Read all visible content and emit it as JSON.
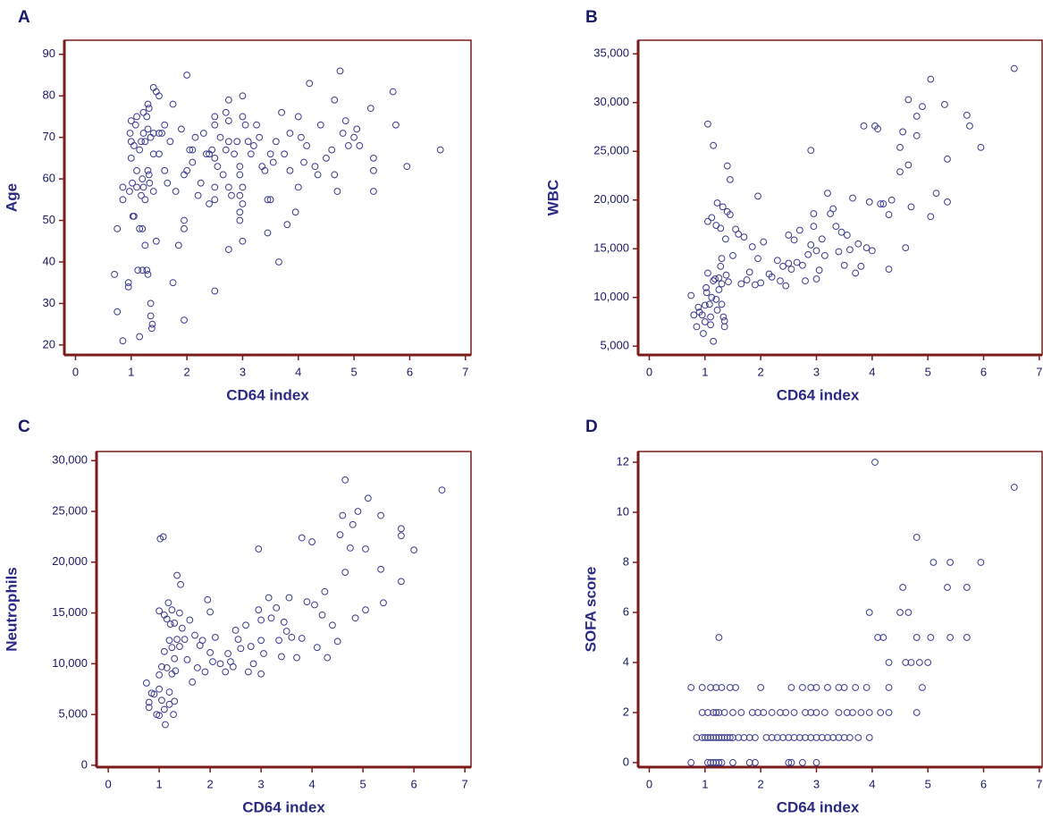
{
  "chart_data": [
    {
      "type": "scatter",
      "label": "A",
      "x_label": "CD64 index",
      "y_label": "Age",
      "color": "#3b3b8f",
      "xlim": [
        -0.2,
        7.1
      ],
      "ylim": [
        17.6,
        93.4
      ],
      "xticks": [
        0,
        1,
        2,
        3,
        4,
        5,
        6,
        7
      ],
      "yticks": [
        20,
        30,
        40,
        50,
        60,
        70,
        80,
        90
      ],
      "x": [
        0.7,
        0.75,
        0.75,
        0.85,
        0.85,
        0.85,
        0.95,
        0.95,
        0.97,
        0.98,
        1.0,
        1.0,
        1.0,
        1.02,
        1.03,
        1.05,
        1.05,
        1.08,
        1.1,
        1.1,
        1.1,
        1.12,
        1.15,
        1.15,
        1.15,
        1.18,
        1.18,
        1.2,
        1.2,
        1.2,
        1.22,
        1.22,
        1.22,
        1.25,
        1.25,
        1.25,
        1.28,
        1.28,
        1.3,
        1.3,
        1.3,
        1.3,
        1.32,
        1.32,
        1.33,
        1.35,
        1.35,
        1.35,
        1.37,
        1.38,
        1.4,
        1.4,
        1.4,
        1.4,
        1.45,
        1.45,
        1.5,
        1.5,
        1.5,
        1.55,
        1.6,
        1.6,
        1.65,
        1.7,
        1.75,
        1.75,
        1.8,
        1.85,
        1.9,
        1.95,
        1.95,
        1.95,
        1.95,
        2.0,
        2.0,
        2.05,
        2.1,
        2.1,
        2.15,
        2.2,
        2.25,
        2.3,
        2.35,
        2.4,
        2.4,
        2.45,
        2.5,
        2.5,
        2.5,
        2.5,
        2.5,
        2.5,
        2.55,
        2.6,
        2.65,
        2.7,
        2.7,
        2.75,
        2.75,
        2.75,
        2.75,
        2.75,
        2.8,
        2.85,
        2.9,
        2.95,
        2.95,
        2.95,
        2.95,
        2.95,
        3.0,
        3.0,
        3.0,
        3.0,
        3.0,
        3.05,
        3.1,
        3.15,
        3.2,
        3.25,
        3.3,
        3.35,
        3.4,
        3.45,
        3.45,
        3.5,
        3.5,
        3.55,
        3.6,
        3.65,
        3.7,
        3.75,
        3.8,
        3.85,
        3.85,
        3.95,
        4.0,
        4.0,
        4.05,
        4.1,
        4.15,
        4.2,
        4.3,
        4.35,
        4.4,
        4.5,
        4.6,
        4.65,
        4.65,
        4.7,
        4.75,
        4.8,
        4.85,
        4.9,
        5.0,
        5.05,
        5.1,
        5.3,
        5.35,
        5.35,
        5.35,
        5.7,
        5.75,
        5.95,
        6.55
      ],
      "values": [
        37,
        28,
        48,
        21,
        58,
        55,
        34,
        35,
        57,
        71,
        74,
        69,
        65,
        59,
        51,
        51,
        68,
        73,
        75,
        62,
        58,
        38,
        22,
        48,
        67,
        69,
        56,
        48,
        60,
        38,
        76,
        71,
        58,
        44,
        55,
        69,
        75,
        38,
        78,
        72,
        62,
        37,
        77,
        61,
        59,
        70,
        30,
        27,
        24,
        25,
        82,
        66,
        57,
        71,
        81,
        45,
        80,
        71,
        66,
        71,
        73,
        62,
        59,
        69,
        35,
        78,
        57,
        44,
        72,
        26,
        50,
        48,
        61,
        85,
        62,
        67,
        64,
        67,
        70,
        56,
        59,
        71,
        66,
        66,
        54,
        67,
        75,
        73,
        65,
        58,
        55,
        33,
        63,
        70,
        61,
        76,
        67,
        79,
        74,
        69,
        58,
        43,
        56,
        66,
        69,
        63,
        61,
        56,
        52,
        50,
        80,
        75,
        58,
        54,
        45,
        73,
        69,
        66,
        68,
        73,
        70,
        63,
        62,
        55,
        47,
        66,
        55,
        64,
        69,
        40,
        76,
        66,
        49,
        71,
        62,
        52,
        58,
        75,
        70,
        64,
        68,
        83,
        63,
        61,
        73,
        65,
        67,
        79,
        61,
        57,
        86,
        71,
        74,
        68,
        70,
        72,
        68,
        77,
        65,
        62,
        57,
        81,
        73,
        63,
        67
      ]
    },
    {
      "type": "scatter",
      "label": "B",
      "x_label": "CD64 index",
      "y_label": "WBC",
      "color": "#3b3b8f",
      "xlim": [
        -0.2,
        7.05
      ],
      "ylim": [
        4100,
        36400
      ],
      "xticks": [
        0,
        1,
        2,
        3,
        4,
        5,
        6,
        7
      ],
      "yticks": [
        {
          "value": 5000,
          "label": "5,000"
        },
        {
          "value": 10000,
          "label": "10,000"
        },
        {
          "value": 15000,
          "label": "15,000"
        },
        {
          "value": 20000,
          "label": "20,000"
        },
        {
          "value": 25000,
          "label": "25,000"
        },
        {
          "value": 30000,
          "label": "30,000"
        },
        {
          "value": 35000,
          "label": "35,000"
        }
      ],
      "x": [
        0.75,
        0.8,
        0.85,
        0.88,
        0.9,
        0.95,
        0.97,
        1.0,
        1.0,
        1.02,
        1.03,
        1.05,
        1.05,
        1.05,
        1.08,
        1.1,
        1.1,
        1.12,
        1.12,
        1.15,
        1.15,
        1.15,
        1.18,
        1.2,
        1.2,
        1.22,
        1.22,
        1.25,
        1.25,
        1.28,
        1.28,
        1.3,
        1.3,
        1.3,
        1.32,
        1.33,
        1.35,
        1.35,
        1.37,
        1.38,
        1.4,
        1.4,
        1.42,
        1.45,
        1.45,
        1.5,
        1.55,
        1.6,
        1.65,
        1.7,
        1.75,
        1.8,
        1.85,
        1.9,
        1.95,
        1.95,
        2.0,
        2.05,
        2.15,
        2.2,
        2.3,
        2.35,
        2.4,
        2.45,
        2.5,
        2.5,
        2.55,
        2.6,
        2.65,
        2.7,
        2.75,
        2.8,
        2.85,
        2.9,
        2.9,
        2.95,
        2.95,
        3.0,
        3.0,
        3.05,
        3.1,
        3.15,
        3.2,
        3.25,
        3.3,
        3.35,
        3.4,
        3.45,
        3.5,
        3.55,
        3.6,
        3.65,
        3.7,
        3.75,
        3.8,
        3.85,
        3.9,
        3.95,
        4.0,
        4.05,
        4.1,
        4.15,
        4.2,
        4.3,
        4.3,
        4.35,
        4.5,
        4.5,
        4.55,
        4.6,
        4.65,
        4.65,
        4.7,
        4.8,
        4.8,
        4.9,
        5.05,
        5.05,
        5.15,
        5.3,
        5.35,
        5.35,
        5.7,
        5.75,
        5.95,
        6.55
      ],
      "values": [
        10200,
        8200,
        7000,
        9000,
        8500,
        8200,
        6300,
        7500,
        9200,
        11000,
        10500,
        12500,
        17800,
        27800,
        9300,
        8000,
        7200,
        10000,
        18200,
        25600,
        5500,
        11700,
        11900,
        17400,
        9800,
        19700,
        8700,
        12000,
        10800,
        13200,
        17100,
        9300,
        14000,
        11400,
        19300,
        8000,
        7600,
        7000,
        16000,
        12300,
        23500,
        18800,
        11600,
        22100,
        18500,
        14300,
        17000,
        16500,
        11400,
        16200,
        11800,
        12600,
        15200,
        11300,
        20400,
        14000,
        11500,
        15700,
        12400,
        12100,
        13800,
        11700,
        13200,
        11200,
        16400,
        13500,
        12900,
        15900,
        13600,
        16900,
        13300,
        11700,
        14400,
        15400,
        25100,
        18600,
        17300,
        14800,
        11900,
        12800,
        16000,
        14300,
        20700,
        18600,
        19100,
        17300,
        14700,
        16700,
        13300,
        16400,
        14900,
        20200,
        12500,
        15500,
        13200,
        27600,
        15100,
        19800,
        14800,
        27600,
        27300,
        19600,
        19600,
        18500,
        12900,
        20000,
        22900,
        25400,
        27000,
        15100,
        23600,
        30300,
        19300,
        28600,
        26600,
        29600,
        18300,
        32400,
        20700,
        29800,
        24200,
        19800,
        28700,
        27600,
        25400,
        33500
      ]
    },
    {
      "type": "scatter",
      "label": "C",
      "x_label": "CD64 index",
      "y_label": "Neutrophils",
      "color": "#3b3b8f",
      "xlim": [
        -0.23,
        7.12
      ],
      "ylim": [
        -180,
        30900
      ],
      "xticks": [
        0,
        1,
        2,
        3,
        4,
        5,
        6,
        7
      ],
      "yticks": [
        0,
        {
          "value": 5000,
          "label": "5,000"
        },
        {
          "value": 10000,
          "label": "10,000"
        },
        {
          "value": 15000,
          "label": "15,000"
        },
        {
          "value": 20000,
          "label": "20,000"
        },
        {
          "value": 25000,
          "label": "25,000"
        },
        {
          "value": 30000,
          "label": "30,000"
        }
      ],
      "x": [
        0.75,
        0.8,
        0.8,
        0.85,
        0.9,
        0.95,
        1.0,
        1.0,
        1.0,
        1.0,
        1.02,
        1.05,
        1.05,
        1.08,
        1.1,
        1.1,
        1.1,
        1.12,
        1.15,
        1.15,
        1.18,
        1.2,
        1.2,
        1.2,
        1.22,
        1.25,
        1.25,
        1.25,
        1.28,
        1.3,
        1.3,
        1.3,
        1.32,
        1.35,
        1.35,
        1.4,
        1.4,
        1.42,
        1.45,
        1.5,
        1.55,
        1.6,
        1.65,
        1.7,
        1.75,
        1.8,
        1.85,
        1.9,
        1.95,
        2.0,
        2.0,
        2.05,
        2.1,
        2.2,
        2.3,
        2.35,
        2.4,
        2.45,
        2.5,
        2.55,
        2.6,
        2.7,
        2.75,
        2.8,
        2.85,
        2.95,
        2.95,
        3.0,
        3.0,
        3.0,
        3.05,
        3.15,
        3.2,
        3.3,
        3.35,
        3.4,
        3.45,
        3.5,
        3.55,
        3.6,
        3.7,
        3.8,
        3.8,
        3.9,
        4.0,
        4.05,
        4.1,
        4.2,
        4.25,
        4.3,
        4.4,
        4.5,
        4.55,
        4.6,
        4.65,
        4.65,
        4.75,
        4.8,
        4.85,
        4.9,
        5.05,
        5.05,
        5.1,
        5.35,
        5.35,
        5.4,
        5.75,
        5.75,
        5.75,
        6.0,
        6.55
      ],
      "values": [
        8100,
        6200,
        5700,
        7100,
        7000,
        5000,
        4900,
        7500,
        8900,
        15200,
        22300,
        9700,
        6400,
        22500,
        14800,
        11200,
        5500,
        4000,
        14400,
        9600,
        16000,
        12300,
        7200,
        6000,
        13900,
        15300,
        11600,
        9000,
        5000,
        14000,
        10500,
        6300,
        9300,
        12400,
        18700,
        15000,
        11700,
        17800,
        13500,
        12400,
        10400,
        14300,
        8200,
        12800,
        9600,
        11800,
        12300,
        9200,
        16300,
        15100,
        11100,
        10200,
        12600,
        10000,
        9200,
        11000,
        10200,
        9700,
        13300,
        12400,
        11500,
        13800,
        9200,
        11700,
        10000,
        21300,
        15300,
        14300,
        12300,
        9000,
        11000,
        16500,
        14500,
        15500,
        12300,
        10700,
        14100,
        13200,
        16500,
        12600,
        10600,
        22400,
        12500,
        16100,
        22000,
        15800,
        11600,
        14800,
        17100,
        10600,
        13800,
        12200,
        22700,
        24600,
        28100,
        19000,
        21400,
        23700,
        14500,
        25000,
        21300,
        15300,
        26300,
        24600,
        19300,
        16000,
        23300,
        22600,
        18100,
        21200,
        27100
      ]
    },
    {
      "type": "scatter",
      "label": "D",
      "x_label": "CD64 index",
      "y_label": "SOFA score",
      "color": "#3b3b8f",
      "xlim": [
        -0.2,
        7.05
      ],
      "ylim": [
        -0.18,
        12.43
      ],
      "xticks": [
        0,
        1,
        2,
        3,
        4,
        5,
        6,
        7
      ],
      "yticks": [
        0,
        2,
        4,
        6,
        8,
        10,
        12
      ],
      "x": [
        0.75,
        1.05,
        1.1,
        1.15,
        1.2,
        1.25,
        1.3,
        1.5,
        1.8,
        1.9,
        2.5,
        2.55,
        2.75,
        3.0,
        0.85,
        0.95,
        1.0,
        1.05,
        1.1,
        1.15,
        1.2,
        1.25,
        1.3,
        1.35,
        1.4,
        1.45,
        1.5,
        1.6,
        1.7,
        1.8,
        1.9,
        2.1,
        2.2,
        2.3,
        2.4,
        2.5,
        2.6,
        2.7,
        2.8,
        2.9,
        3.0,
        3.1,
        3.2,
        3.3,
        3.4,
        3.5,
        3.6,
        3.75,
        3.95,
        0.95,
        1.05,
        1.15,
        1.2,
        1.25,
        1.35,
        1.5,
        1.65,
        1.85,
        1.95,
        2.05,
        2.2,
        2.35,
        2.45,
        2.6,
        2.8,
        2.9,
        3.0,
        3.15,
        3.4,
        3.55,
        3.65,
        3.8,
        3.95,
        4.15,
        4.3,
        4.8,
        0.75,
        0.95,
        1.1,
        1.2,
        1.3,
        1.45,
        1.55,
        2.0,
        2.55,
        2.75,
        2.9,
        3.0,
        3.2,
        3.4,
        3.5,
        3.7,
        3.9,
        4.3,
        4.9,
        1.25,
        3.95,
        4.1,
        4.2,
        4.3,
        4.5,
        4.55,
        4.6,
        4.65,
        4.7,
        4.8,
        4.8,
        4.85,
        5.0,
        5.05,
        5.1,
        5.35,
        5.4,
        5.4,
        5.7,
        5.7,
        5.95,
        4.05,
        6.55
      ],
      "values": [
        0,
        0,
        0,
        0,
        0,
        0,
        0,
        0,
        0,
        0,
        0,
        0,
        0,
        0,
        1,
        1,
        1,
        1,
        1,
        1,
        1,
        1,
        1,
        1,
        1,
        1,
        1,
        1,
        1,
        1,
        1,
        1,
        1,
        1,
        1,
        1,
        1,
        1,
        1,
        1,
        1,
        1,
        1,
        1,
        1,
        1,
        1,
        1,
        1,
        2,
        2,
        2,
        2,
        2,
        2,
        2,
        2,
        2,
        2,
        2,
        2,
        2,
        2,
        2,
        2,
        2,
        2,
        2,
        2,
        2,
        2,
        2,
        2,
        2,
        2,
        2,
        3,
        3,
        3,
        3,
        3,
        3,
        3,
        3,
        3,
        3,
        3,
        3,
        3,
        3,
        3,
        3,
        3,
        3,
        3,
        5,
        6,
        5,
        5,
        4,
        6,
        7,
        4,
        6,
        4,
        5,
        9,
        4,
        4,
        5,
        8,
        7,
        8,
        5,
        5,
        7,
        8,
        12,
        11
      ]
    }
  ]
}
